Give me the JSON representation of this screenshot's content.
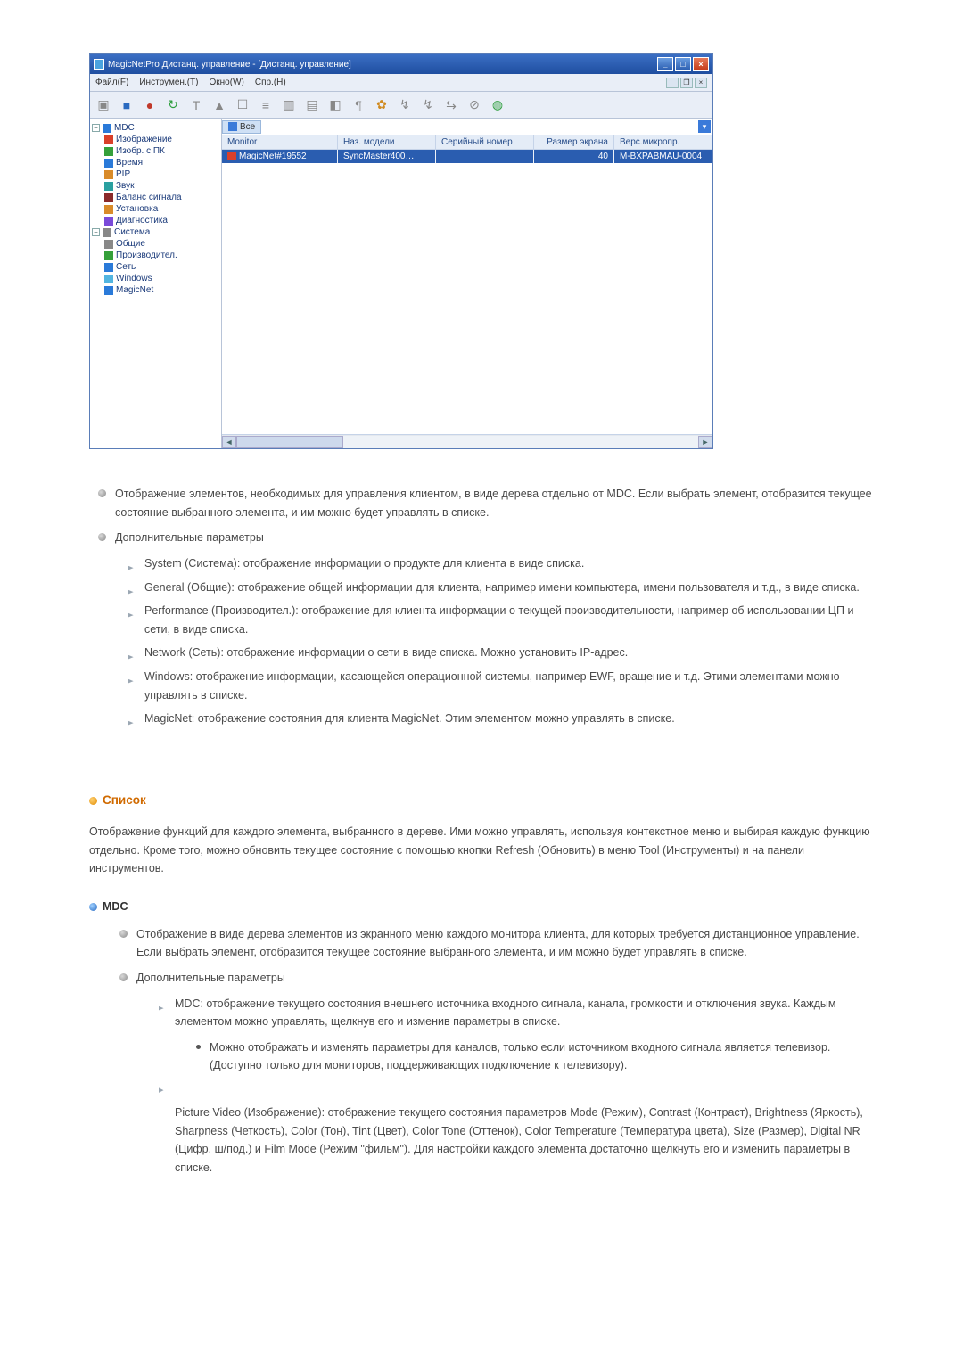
{
  "app": {
    "title": "MagicNetPro Дистанц. управление - [Дистанц. управление]",
    "menubar": [
      "Файл(F)",
      "Инструмен.(T)",
      "Окно(W)",
      "Спр.(H)"
    ],
    "toolbar_icons": [
      {
        "name": "icon1",
        "glyph": "▣",
        "cls": "color-gray"
      },
      {
        "name": "icon2",
        "glyph": "■",
        "cls": "color-blue"
      },
      {
        "name": "icon3",
        "glyph": "●",
        "cls": "color-red"
      },
      {
        "name": "icon4",
        "glyph": "↻",
        "cls": "color-green"
      },
      {
        "name": "icon5",
        "glyph": "T",
        "cls": "color-gray"
      },
      {
        "name": "icon6",
        "glyph": "▲",
        "cls": "color-gray"
      },
      {
        "name": "icon7",
        "glyph": "☐",
        "cls": "color-gray"
      },
      {
        "name": "icon8",
        "glyph": "≡",
        "cls": "color-gray"
      },
      {
        "name": "icon9",
        "glyph": "▥",
        "cls": "color-gray"
      },
      {
        "name": "icon10",
        "glyph": "▤",
        "cls": "color-gray"
      },
      {
        "name": "icon11",
        "glyph": "◧",
        "cls": "color-gray"
      },
      {
        "name": "icon12",
        "glyph": "¶",
        "cls": "color-gray"
      },
      {
        "name": "icon13",
        "glyph": "✿",
        "cls": "color-orange"
      },
      {
        "name": "icon14",
        "glyph": "↯",
        "cls": "color-gray"
      },
      {
        "name": "icon15",
        "glyph": "↯",
        "cls": "color-gray"
      },
      {
        "name": "icon16",
        "glyph": "⇆",
        "cls": "color-gray"
      },
      {
        "name": "icon17",
        "glyph": "⊘",
        "cls": "color-gray"
      },
      {
        "name": "icon18",
        "glyph": "◍",
        "cls": "color-green"
      }
    ],
    "tree": {
      "root": "MDC",
      "mdc_items": [
        {
          "label": "Изображение",
          "cls": "tb-red"
        },
        {
          "label": "Изобр. с ПК",
          "cls": "tb-green"
        },
        {
          "label": "Время",
          "cls": "tb-blue"
        },
        {
          "label": "PIP",
          "cls": "tb-orange"
        },
        {
          "label": "Звук",
          "cls": "tb-teal"
        },
        {
          "label": "Баланс сигнала",
          "cls": "tb-darkred"
        },
        {
          "label": "Установка",
          "cls": "tb-orange"
        },
        {
          "label": "Диагностика",
          "cls": "tb-purple"
        }
      ],
      "sys_root": "Система",
      "sys_items": [
        {
          "label": "Общие",
          "cls": "tb-gray"
        },
        {
          "label": "Производител.",
          "cls": "tb-green"
        },
        {
          "label": "Сеть",
          "cls": "tb-blue"
        },
        {
          "label": "Windows",
          "cls": "tb-cyan"
        },
        {
          "label": "MagicNet",
          "cls": "tb-blue"
        }
      ]
    },
    "list": {
      "tab": "Все",
      "headers": [
        "Monitor",
        "Наз. модели",
        "Серийный номер",
        "Размер экрана",
        "Верс.микропр."
      ],
      "row": {
        "monitor": "MagicNet#19552",
        "model": "SyncMaster400…",
        "serial": "",
        "size": "40",
        "fw": "M-BXPABMAU-0004"
      }
    }
  },
  "body": {
    "para1": "Отображение элементов, необходимых для управления клиентом, в виде дерева отдельно от MDC. Если выбрать элемент, отобразится текущее состояние выбранного элемента, и им можно будет управлять в списке.",
    "para2_head": "Дополнительные параметры",
    "sub": {
      "system": "System (Система): отображение информации о продукте для клиента в виде списка.",
      "general": "General (Общие): отображение общей информации для клиента, например имени компьютера, имени пользователя и т.д., в виде списка.",
      "performance": "Performance (Производител.): отображение для клиента информации о текущей производительности, например об использовании ЦП и сети, в виде списка.",
      "network": "Network (Сеть): отображение информации о сети в виде списка. Можно установить IP-адрес.",
      "windows": "Windows: отображение информации, касающейся операционной системы, например EWF, вращение и т.д. Этими элементами можно управлять в списке.",
      "magicnet": "MagicNet: отображение состояния для клиента MagicNet. Этим элементом можно управлять в списке."
    },
    "section_list": "Список",
    "list_para": "Отображение функций для каждого элемента, выбранного в дереве. Ими можно управлять, используя контекстное меню и выбирая каждую функцию отдельно. Кроме того, можно обновить текущее состояние с помощью кнопки Refresh (Обновить) в меню Tool (Инструменты) и на панели инструментов.",
    "mdc_heading": "MDC",
    "mdc_para1": "Отображение в виде дерева элементов из экранного меню каждого монитора клиента, для которых требуется дистанционное управление. Если выбрать элемент, отобразится текущее состояние выбранного элемента, и им можно будет управлять в списке.",
    "mdc_para2_head": "Дополнительные параметры",
    "mdc_sub1": "MDC: отображение текущего состояния внешнего источника входного сигнала, канала, громкости и отключения звука. Каждым элементом можно управлять, щелкнув его и изменив параметры в списке.",
    "mdc_note": "Можно отображать и изменять параметры для каналов, только если источником входного сигнала является телевизор. (Доступно только для мониторов, поддерживающих подключение к телевизору).",
    "mdc_sub2": "Picture Video (Изображение): отображение текущего состояния параметров Mode (Режим), Contrast (Контраст), Brightness (Яркость), Sharpness (Четкость), Color (Тон), Tint (Цвет), Color Tone (Оттенок), Color Temperature (Температура цвета), Size (Размер), Digital NR (Цифр. ш/под.) и Film Mode (Режим \"фильм\"). Для настройки каждого элемента достаточно щелкнуть его и изменить параметры в списке."
  }
}
